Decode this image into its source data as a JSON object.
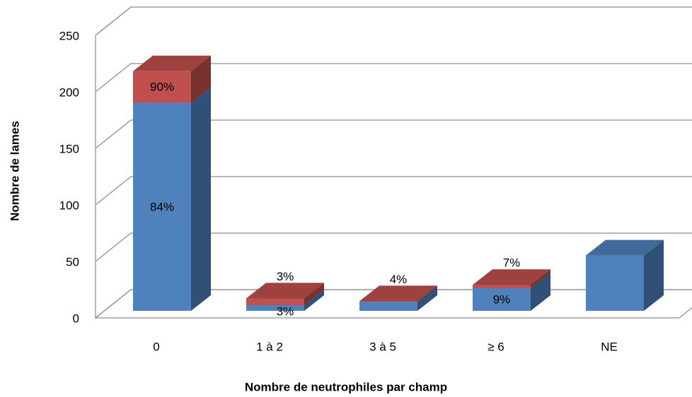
{
  "chart_data": {
    "type": "bar3d_stacked",
    "x_label": "Nombre de neutrophiles par champ",
    "y_label": "Nombre de lames",
    "categories": [
      "0",
      "1 à 2",
      "3 à 5",
      "≥ 6",
      "NE"
    ],
    "series": [
      {
        "color": "#4f81bd",
        "values": [
          184,
          5,
          8,
          20,
          49
        ],
        "percent_labels": [
          "84%",
          "3%",
          null,
          "9%",
          null
        ]
      },
      {
        "color": "#c0504d",
        "values": [
          28,
          6,
          0.5,
          3,
          0
        ],
        "percent_labels": [
          "90%",
          "3%",
          "4%",
          "7%",
          null
        ]
      }
    ],
    "ylim": [
      0,
      250
    ],
    "yticks": [
      0,
      50,
      100,
      150,
      200,
      250
    ],
    "grid": true
  }
}
